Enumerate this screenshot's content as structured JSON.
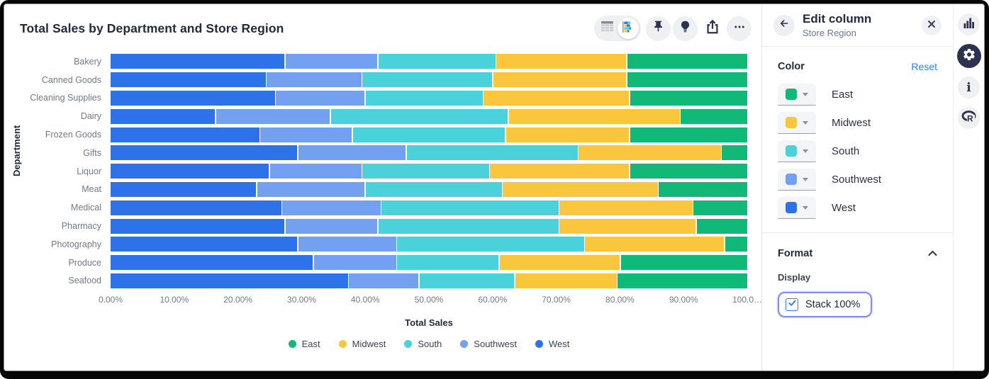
{
  "chart_card": {
    "title": "Total Sales by Department and Store Region"
  },
  "chart_data": {
    "type": "bar",
    "orientation": "horizontal",
    "stacked": true,
    "stack_100_percent": true,
    "title": "Total Sales by Department and Store Region",
    "xlabel": "Total Sales",
    "ylabel": "Department",
    "xlim": [
      0,
      100
    ],
    "x_ticks": [
      "0.00%",
      "10.00%",
      "20.00%",
      "30.00%",
      "40.00%",
      "50.00%",
      "60.00%",
      "70.00%",
      "80.00%",
      "90.00%",
      "100.0…"
    ],
    "grid": false,
    "legend_position": "bottom",
    "categories": [
      "Bakery",
      "Canned Goods",
      "Cleaning Supplies",
      "Dairy",
      "Frozen Goods",
      "Gifts",
      "Liquor",
      "Meat",
      "Medical",
      "Pharmacy",
      "Photography",
      "Produce",
      "Seafood"
    ],
    "bar_draw_order": [
      "West",
      "Southwest",
      "South",
      "Midwest",
      "East"
    ],
    "legend": [
      "East",
      "Midwest",
      "South",
      "Southwest",
      "West"
    ],
    "series": [
      {
        "name": "East",
        "color": "#11b877",
        "values": [
          19,
          19,
          18.5,
          10.5,
          18.5,
          4,
          18.5,
          14,
          8.5,
          8,
          3.5,
          20,
          20.5
        ]
      },
      {
        "name": "Midwest",
        "color": "#fac63d",
        "values": [
          20.5,
          21,
          23,
          27,
          19.5,
          22.5,
          22,
          24.5,
          21,
          21.5,
          22,
          19,
          16
        ]
      },
      {
        "name": "South",
        "color": "#4bd1d9",
        "values": [
          18.5,
          20.5,
          18.5,
          28,
          24,
          27,
          20,
          21.5,
          28,
          28.5,
          29.5,
          16,
          15
        ]
      },
      {
        "name": "Southwest",
        "color": "#74a0f1",
        "values": [
          14.5,
          15,
          14,
          18,
          14.5,
          17,
          14.5,
          17,
          15.5,
          14.5,
          15.5,
          13,
          11
        ]
      },
      {
        "name": "West",
        "color": "#2e72e9",
        "values": [
          27.5,
          24.5,
          26,
          16.5,
          23.5,
          29.5,
          25,
          23,
          27,
          27.5,
          29.5,
          32,
          37.5
        ]
      }
    ]
  },
  "panel": {
    "title": "Edit column",
    "subtitle": "Store Region",
    "color_section": {
      "label": "Color",
      "reset_label": "Reset",
      "rows": [
        {
          "name": "East",
          "color": "#11b877"
        },
        {
          "name": "Midwest",
          "color": "#fac63d"
        },
        {
          "name": "South",
          "color": "#4bd1d9"
        },
        {
          "name": "Southwest",
          "color": "#74a0f1"
        },
        {
          "name": "West",
          "color": "#2e72e9"
        }
      ]
    },
    "format_section": {
      "label": "Format",
      "display_label": "Display",
      "stack_label": "Stack 100%",
      "stack_checked": true
    }
  },
  "icons": {
    "toolbar": [
      "table-icon",
      "stacked-chart-icon",
      "pin-icon",
      "lightbulb-icon",
      "share-icon",
      "ellipsis-icon"
    ],
    "panel": [
      "back-arrow-icon",
      "close-icon",
      "chevron-down-icon",
      "chevron-up-icon",
      "checkbox-check-icon"
    ],
    "rail": [
      "bar-chart-icon",
      "gear-icon",
      "info-icon",
      "r-logo-icon"
    ]
  },
  "colors": {
    "accent_blue": "#2d7ff9",
    "focus_ring": "#7f8df2",
    "heading_text": "#232a3f",
    "muted_text": "#74798a"
  }
}
